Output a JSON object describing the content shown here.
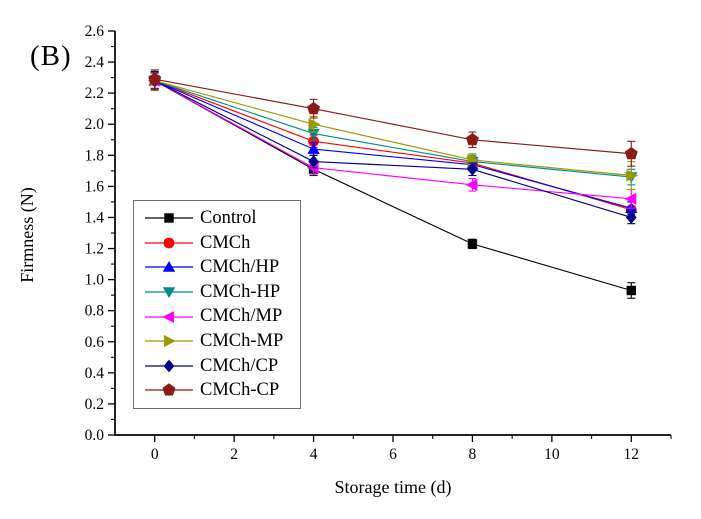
{
  "panel_label": "(B)",
  "chart_data": {
    "type": "line",
    "title": "",
    "xlabel": "Storage time (d)",
    "ylabel": "Firmness (N)",
    "x": [
      0,
      4,
      8,
      12
    ],
    "xlim": [
      -1,
      13
    ],
    "ylim": [
      0,
      2.6
    ],
    "xtick_labels": [
      "0",
      "2",
      "4",
      "6",
      "8",
      "10",
      "12"
    ],
    "xticks_minor": [
      1,
      3,
      5,
      7,
      9,
      11,
      13
    ],
    "ytick_labels": [
      "0.0",
      "0.2",
      "0.4",
      "0.6",
      "0.8",
      "1.0",
      "1.2",
      "1.4",
      "1.6",
      "1.8",
      "2.0",
      "2.2",
      "2.4",
      "2.6"
    ],
    "grid": false,
    "legend_position": "inside-left-middle",
    "error_bars": true,
    "series": [
      {
        "name": "Control",
        "color": "#000000",
        "marker": "square",
        "values": [
          2.28,
          1.71,
          1.23,
          0.93
        ],
        "errors": [
          0.06,
          0.04,
          0.03,
          0.05
        ]
      },
      {
        "name": "CMCh",
        "color": "#ff0000",
        "marker": "circle",
        "values": [
          2.28,
          1.89,
          1.75,
          1.45
        ],
        "errors": [
          0.05,
          0.04,
          0.04,
          0.05
        ]
      },
      {
        "name": "CMCh/HP",
        "color": "#0000ff",
        "marker": "triangle-up",
        "values": [
          2.28,
          1.84,
          1.74,
          1.46
        ],
        "errors": [
          0.05,
          0.04,
          0.04,
          0.04
        ]
      },
      {
        "name": "CMCh-HP",
        "color": "#008b8b",
        "marker": "triangle-down",
        "values": [
          2.28,
          1.94,
          1.76,
          1.66
        ],
        "errors": [
          0.05,
          0.04,
          0.04,
          0.05
        ]
      },
      {
        "name": "CMCh/MP",
        "color": "#ff00ff",
        "marker": "triangle-left",
        "values": [
          2.28,
          1.72,
          1.61,
          1.52
        ],
        "errors": [
          0.05,
          0.04,
          0.04,
          0.06
        ]
      },
      {
        "name": "CMCh-MP",
        "color": "#999900",
        "marker": "triangle-right",
        "values": [
          2.28,
          2.0,
          1.77,
          1.67
        ],
        "errors": [
          0.05,
          0.05,
          0.04,
          0.09
        ]
      },
      {
        "name": "CMCh/CP",
        "color": "#00008b",
        "marker": "diamond",
        "values": [
          2.28,
          1.76,
          1.71,
          1.4
        ],
        "errors": [
          0.05,
          0.04,
          0.04,
          0.04
        ]
      },
      {
        "name": "CMCh-CP",
        "color": "#8b1a1a",
        "marker": "pentagon",
        "values": [
          2.29,
          2.1,
          1.9,
          1.81
        ],
        "errors": [
          0.06,
          0.06,
          0.05,
          0.08
        ]
      }
    ]
  }
}
